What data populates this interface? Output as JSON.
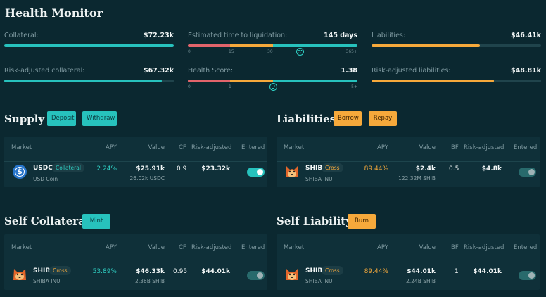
{
  "page": {
    "title": "Health Monitor"
  },
  "metrics": {
    "collateral": {
      "label": "Collateral:",
      "value": "$72.23k",
      "fraction": 1.0
    },
    "liquidation": {
      "label": "Estimated time to liquidation:",
      "value": "145 days",
      "ticks": [
        "0",
        "15",
        "30",
        "365+"
      ],
      "level": 0.66
    },
    "liabilities": {
      "label": "Liabilities:",
      "value": "$46.41k",
      "fraction": 0.64
    },
    "risk_collateral": {
      "label": "Risk-adjusted collateral:",
      "value": "$67.32k",
      "fraction": 0.93
    },
    "health": {
      "label": "Health Score:",
      "value": "1.38",
      "ticks": [
        "0",
        "1",
        "5+"
      ],
      "level": 0.5
    },
    "risk_liabilities": {
      "label": "Risk-adjusted liabilities:",
      "value": "$48.81k",
      "fraction": 0.72
    }
  },
  "colors": {
    "teal": "#27c2bd",
    "orange": "#f6a93b",
    "red": "#e2646b",
    "track": "#20444c"
  },
  "supply": {
    "title": "Supply",
    "deposit": "Deposit",
    "withdraw": "Withdraw",
    "headers": {
      "market": "Market",
      "apy": "APY",
      "value": "Value",
      "factor": "CF",
      "risk": "Risk-adjusted",
      "entered": "Entered"
    },
    "row": {
      "symbol": "USDC",
      "tag": "Collateral",
      "name": "USD Coin",
      "apy": "2.24%",
      "value": "$25.91k",
      "amount": "26.02k USDC",
      "factor": "0.9",
      "risk": "$23.32k",
      "entered": true
    }
  },
  "liabilities": {
    "title": "Liabilities",
    "borrow": "Borrow",
    "repay": "Repay",
    "headers": {
      "market": "Market",
      "apy": "APY",
      "value": "Value",
      "factor": "BF",
      "risk": "Risk-adjusted",
      "entered": "Entered"
    },
    "row": {
      "symbol": "SHIB",
      "tag": "Cross",
      "name": "SHIBA INU",
      "apy": "89.44%",
      "value": "$2.4k",
      "amount": "122.32M SHIB",
      "factor": "0.5",
      "risk": "$4.8k",
      "entered": false
    }
  },
  "self_collateral": {
    "title": "Self Collateral",
    "mint": "Mint",
    "headers": {
      "market": "Market",
      "apy": "APY",
      "value": "Value",
      "factor": "CF",
      "risk": "Risk-adjusted",
      "entered": "Entered"
    },
    "row": {
      "symbol": "SHIB",
      "tag": "Cross",
      "name": "SHIBA INU",
      "apy": "53.89%",
      "value": "$46.33k",
      "amount": "2.36B SHIB",
      "factor": "0.95",
      "risk": "$44.01k",
      "entered": false
    }
  },
  "self_liability": {
    "title": "Self Liability",
    "burn": "Burn",
    "headers": {
      "market": "Market",
      "apy": "APY",
      "value": "Value",
      "factor": "BF",
      "risk": "Risk-adjusted",
      "entered": "Entered"
    },
    "row": {
      "symbol": "SHIB",
      "tag": "Cross",
      "name": "SHIBA INU",
      "apy": "89.44%",
      "value": "$44.01k",
      "amount": "2.24B SHIB",
      "factor": "1",
      "risk": "$44.01k",
      "entered": false
    }
  }
}
